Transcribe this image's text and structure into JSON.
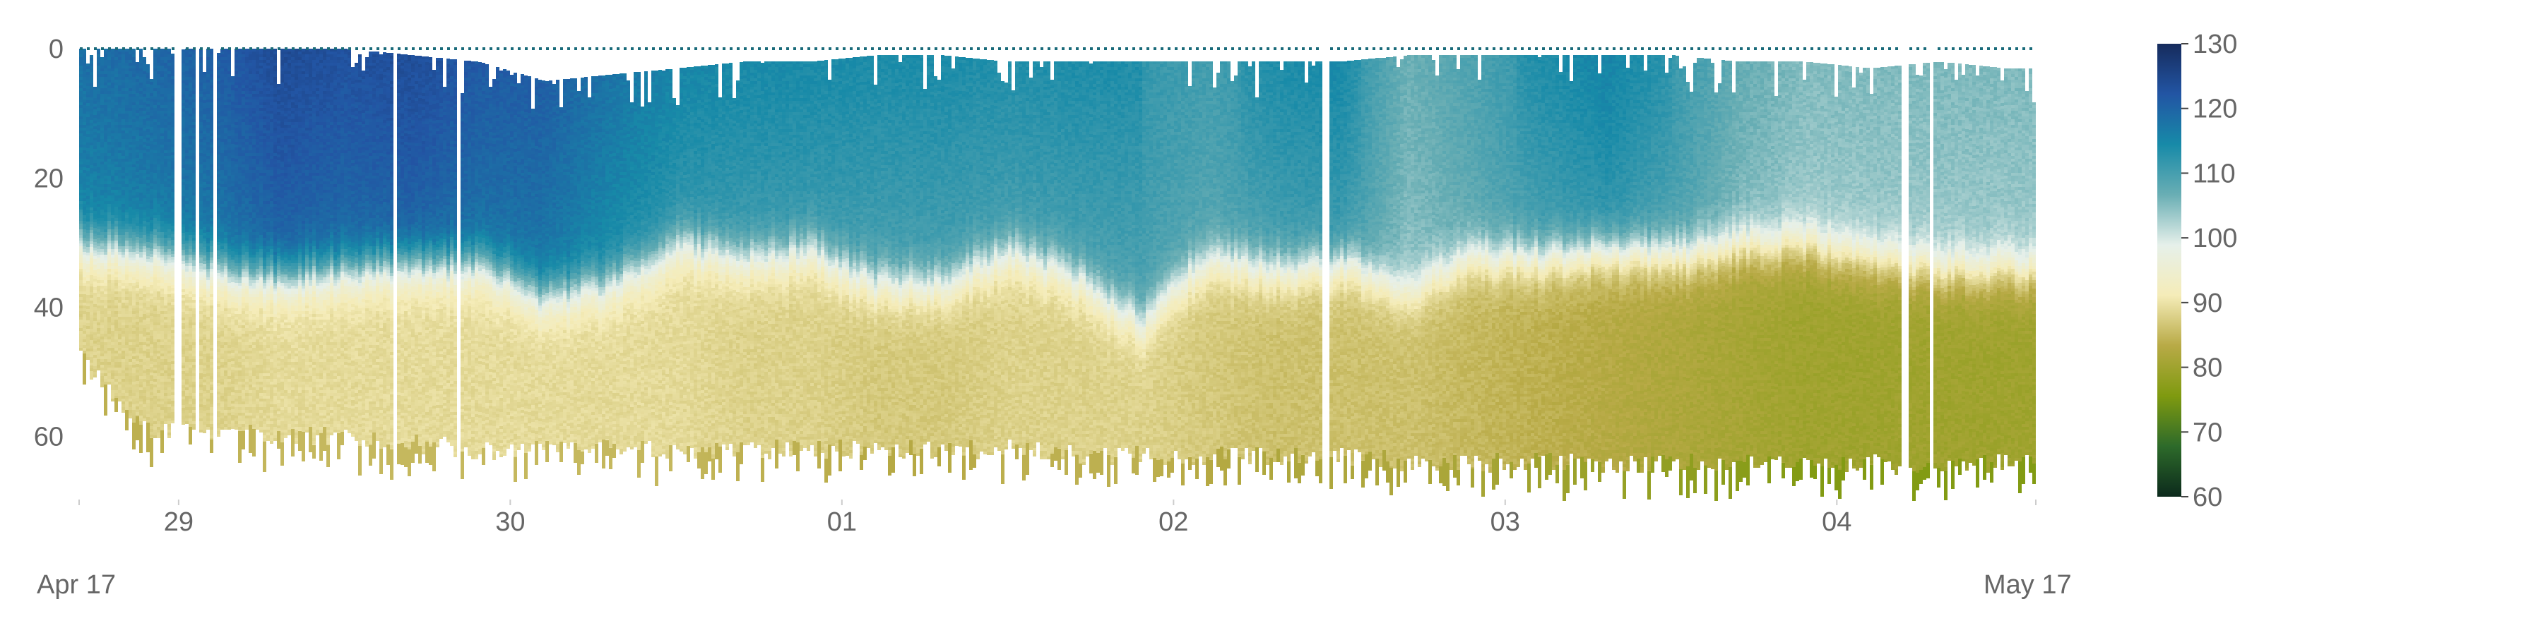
{
  "chart_data": {
    "type": "heatmap",
    "title": "",
    "xlabel": "",
    "ylabel": "",
    "x_ticks": [
      "29",
      "30",
      "01",
      "02",
      "03",
      "04"
    ],
    "x_tick_days": [
      29,
      30,
      31,
      32,
      33,
      34
    ],
    "xlim": [
      28.7,
      34.6
    ],
    "y_ticks": [
      0,
      20,
      40,
      60
    ],
    "ylim": [
      70,
      -1
    ],
    "colorbar": {
      "ticks": [
        60,
        70,
        80,
        90,
        100,
        110,
        120,
        130
      ],
      "range": [
        60,
        130
      ],
      "colors": [
        "#0c2a1c",
        "#2d6a2a",
        "#7f9a10",
        "#b8aa46",
        "#f5ecb8",
        "#e6f0ea",
        "#69aeb4",
        "#178aa8",
        "#2255a4",
        "#162b5c"
      ]
    },
    "columns": [
      {
        "x": 28.7,
        "top": 0,
        "interface": 30,
        "bottom": 48,
        "upper": 116,
        "lower": 88
      },
      {
        "x": 28.9,
        "top": 0,
        "interface": 31,
        "bottom": 59,
        "upper": 117,
        "lower": 88
      },
      {
        "x": 29.1,
        "top": 0,
        "interface": 34,
        "bottom": 59,
        "upper": 118,
        "lower": 88
      },
      {
        "x": 29.3,
        "top": 0,
        "interface": 35,
        "bottom": 60,
        "upper": 121,
        "lower": 89
      },
      {
        "x": 29.5,
        "top": 0,
        "interface": 34,
        "bottom": 60,
        "upper": 120,
        "lower": 89
      },
      {
        "x": 29.7,
        "top": 1,
        "interface": 33,
        "bottom": 61,
        "upper": 121,
        "lower": 89
      },
      {
        "x": 29.9,
        "top": 2,
        "interface": 33,
        "bottom": 62,
        "upper": 119,
        "lower": 89
      },
      {
        "x": 30.1,
        "top": 5,
        "interface": 38,
        "bottom": 62,
        "upper": 118,
        "lower": 89
      },
      {
        "x": 30.3,
        "top": 4,
        "interface": 36,
        "bottom": 62,
        "upper": 115,
        "lower": 89
      },
      {
        "x": 30.5,
        "top": 3,
        "interface": 30,
        "bottom": 62,
        "upper": 113,
        "lower": 89
      },
      {
        "x": 30.7,
        "top": 2,
        "interface": 32,
        "bottom": 62,
        "upper": 112,
        "lower": 88
      },
      {
        "x": 30.9,
        "top": 2,
        "interface": 31,
        "bottom": 62,
        "upper": 112,
        "lower": 88
      },
      {
        "x": 31.1,
        "top": 1,
        "interface": 36,
        "bottom": 62,
        "upper": 111,
        "lower": 87
      },
      {
        "x": 31.3,
        "top": 1,
        "interface": 36,
        "bottom": 62,
        "upper": 111,
        "lower": 87
      },
      {
        "x": 31.5,
        "top": 2,
        "interface": 31,
        "bottom": 62,
        "upper": 111,
        "lower": 88
      },
      {
        "x": 31.7,
        "top": 2,
        "interface": 35,
        "bottom": 63,
        "upper": 111,
        "lower": 88
      },
      {
        "x": 31.9,
        "top": 2,
        "interface": 42,
        "bottom": 63,
        "upper": 110,
        "lower": 88
      },
      {
        "x": 32.1,
        "top": 2,
        "interface": 32,
        "bottom": 63,
        "upper": 109,
        "lower": 87
      },
      {
        "x": 32.3,
        "top": 2,
        "interface": 34,
        "bottom": 63,
        "upper": 111,
        "lower": 86
      },
      {
        "x": 32.5,
        "top": 2,
        "interface": 33,
        "bottom": 63,
        "upper": 112,
        "lower": 86
      },
      {
        "x": 32.7,
        "top": 1,
        "interface": 37,
        "bottom": 64,
        "upper": 105,
        "lower": 86
      },
      {
        "x": 32.9,
        "top": 1,
        "interface": 32,
        "bottom": 64,
        "upper": 108,
        "lower": 85
      },
      {
        "x": 33.1,
        "top": 1,
        "interface": 32,
        "bottom": 64,
        "upper": 111,
        "lower": 84
      },
      {
        "x": 33.3,
        "top": 1,
        "interface": 31,
        "bottom": 64,
        "upper": 113,
        "lower": 83
      },
      {
        "x": 33.5,
        "top": 1,
        "interface": 32,
        "bottom": 64,
        "upper": 110,
        "lower": 82
      },
      {
        "x": 33.7,
        "top": 2,
        "interface": 30,
        "bottom": 64,
        "upper": 106,
        "lower": 81
      },
      {
        "x": 33.9,
        "top": 2,
        "interface": 30,
        "bottom": 64,
        "upper": 104,
        "lower": 80
      },
      {
        "x": 34.1,
        "top": 3,
        "interface": 32,
        "bottom": 64,
        "upper": 104,
        "lower": 80
      },
      {
        "x": 34.3,
        "top": 2,
        "interface": 34,
        "bottom": 65,
        "upper": 104,
        "lower": 80
      },
      {
        "x": 34.5,
        "top": 3,
        "interface": 34,
        "bottom": 64,
        "upper": 104,
        "lower": 80
      },
      {
        "x": 34.6,
        "top": 3,
        "interface": 34,
        "bottom": 64,
        "upper": 104,
        "lower": 80
      }
    ],
    "gaps": [
      [
        28.985,
        29.0
      ],
      [
        29.045,
        29.06
      ],
      [
        29.1,
        29.115
      ],
      [
        29.64,
        29.655
      ],
      [
        29.835,
        29.85
      ],
      [
        32.445,
        32.46
      ],
      [
        34.195,
        34.21
      ],
      [
        34.27,
        34.285
      ]
    ]
  },
  "range_slider": {
    "start_label": "Apr 17",
    "end_label": "May 17"
  }
}
